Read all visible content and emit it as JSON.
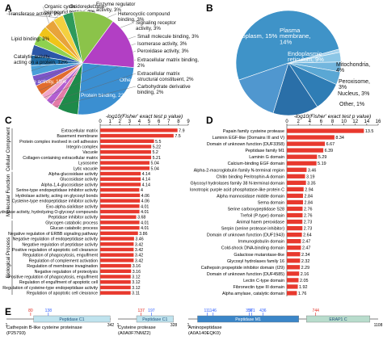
{
  "panels": {
    "A": "A",
    "B": "B",
    "C": "C",
    "D": "D",
    "E": "E"
  },
  "colors": {
    "bar": "#e8392e",
    "domainBox": "#bfe3ee",
    "domainBoxM1": "#3b86c8",
    "erap": "#b8dccc",
    "line": "#555555",
    "siteBlue": "#2a5cff",
    "siteRed": "#e0261c"
  },
  "chart_data": [
    {
      "id": "A",
      "type": "pie",
      "slices": [
        {
          "label": "Protein binding, 23%",
          "value": 23,
          "color": "#3b8fd1"
        },
        {
          "label": "Other, 6%",
          "value": 6,
          "color": "#1e8a4a"
        },
        {
          "label": "Carbohydrate derivative binding, 2%",
          "value": 2,
          "color": "#e47ca8"
        },
        {
          "label": "Extracellular matrix structural constituent, 2%",
          "value": 2,
          "color": "#b35fd2"
        },
        {
          "label": "Extracellular matrix binding, 2%",
          "value": 2,
          "color": "#f2a6c8"
        },
        {
          "label": "Peroxidase activity, 3%",
          "value": 3,
          "color": "#e16c2e"
        },
        {
          "label": "Isomerase activity, 3%",
          "value": 3,
          "color": "#7b56c8"
        },
        {
          "label": "Small molecule binding, 3%",
          "value": 3,
          "color": "#4aa0d8"
        },
        {
          "label": "Signaling receptor activity, 3%",
          "value": 3,
          "color": "#1f6ea8"
        },
        {
          "label": "Heterocyclic compound binding, 3%",
          "value": 3,
          "color": "#2b57a8"
        },
        {
          "label": "Enzyme regulator activity, 3%",
          "value": 3,
          "color": "#8fd14f"
        },
        {
          "label": "Oxidoreductase activity, 3%",
          "value": 3,
          "color": "#f0c419"
        },
        {
          "label": "Organic cyclic compound binding, 3%",
          "value": 3,
          "color": "#e8a33a"
        },
        {
          "label": "Transferase activity, 3%",
          "value": 3,
          "color": "#f4d03f"
        },
        {
          "label": "Lipid binding, 3%",
          "value": 3,
          "color": "#2e9a5b"
        },
        {
          "label": "Catalytic activity, acting on a protein, 12%",
          "value": 12,
          "color": "#8bc34a"
        },
        {
          "label": "Hydrolase activity, 15%",
          "value": 15,
          "color": "#b23fc4"
        }
      ]
    },
    {
      "id": "B",
      "type": "pie",
      "slices": [
        {
          "label": "Extracellular, 51%",
          "value": 51,
          "color": "#3f93c8"
        },
        {
          "label": "Other, 1%",
          "value": 1,
          "color": "#a7d3ee"
        },
        {
          "label": "Nucleus, 3%",
          "value": 3,
          "color": "#8cc6e6"
        },
        {
          "label": "Peroxisome, 3%",
          "value": 3,
          "color": "#73b6de"
        },
        {
          "label": "Mitochondria, 4%",
          "value": 4,
          "color": "#5aa7d4"
        },
        {
          "label": "Endoplasmic reticulum, 9%",
          "value": 9,
          "color": "#2f7db5"
        },
        {
          "label": "Plasma membrane, 14%",
          "value": 14,
          "color": "#2a6fa8"
        },
        {
          "label": "Cytoplasm, 15%",
          "value": 15,
          "color": "#5097cf"
        }
      ]
    },
    {
      "id": "C",
      "type": "bar",
      "orientation": "horizontal",
      "xlabel": "-log10(Fisher' exact test p value)",
      "xlim": [
        0,
        9
      ],
      "xticks": [
        0,
        1,
        2,
        3,
        4,
        5,
        6,
        7,
        8,
        9
      ],
      "groups": [
        {
          "label": "Cellular Component",
          "start": 0,
          "end": 8
        },
        {
          "label": "Molecular Function",
          "start": 8,
          "end": 17
        },
        {
          "label": "Biological Process",
          "start": 17,
          "end": 31
        }
      ],
      "categories": [
        "Extracellular matrix",
        "Basement membrane",
        "Protein complex involved in cell adhesion",
        "Integrin complex",
        "Vacuole",
        "Collagen-containing extracellular matrix",
        "Lysosome",
        "Lytic vacuole",
        "Alpha-glucosidase activity",
        "Glucosidase activity",
        "Alpha-1,4-glucosidase activity",
        "Serine-type endopeptidase inhibitor activity",
        "Hydrolase activity, acting on glycosyl bonds",
        "Cysteine-type endopeptidase inhibitor activity",
        "Exo-alpha-sialidase activity",
        "Hydrolase activity, hydrolyzing O-glycosyl compounds",
        "Peptidase inhibitor activity",
        "Glycogen catabolic process",
        "Glucan catabolic process",
        "Negative regulation of ERBB signaling pathway",
        "Negative regulation of endopeptidase activity",
        "Negative regulation of peptidase activity",
        "Positive regulation of apoptotic cell clearance",
        "Regulation of phagocytosis, engulfment",
        "Regulation of complement activation",
        "Regulation of membrane invagination",
        "Negative regulation of proteolysis",
        "Positive regulation of phagocytosis, engulfment",
        "Regulation of engulfment of apoptotic cell",
        "Regulation of cysteine-type endopeptidase activity",
        "Regulation of apoptotic cell clearance"
      ],
      "values": [
        7.9,
        7.5,
        5.5,
        5.22,
        5.2,
        5.21,
        5.04,
        5.04,
        4.14,
        4.14,
        4.14,
        4.0,
        4.06,
        4.06,
        4.01,
        4.01,
        3.68,
        4.01,
        4.01,
        3.86,
        3.46,
        3.42,
        3.42,
        3.42,
        3.42,
        3.16,
        3.16,
        3.12,
        3.12,
        3.12,
        3.11
      ],
      "value_labels": [
        "7.9",
        "7.5",
        "5.5",
        "5.22",
        "5.2",
        "5.21",
        "5.04",
        "5.04",
        "4.14",
        "4.14",
        "4.14",
        "4",
        "4.06",
        "4.06",
        "4.01",
        "4.01",
        "3.68",
        "4.01",
        "4.01",
        "3.86",
        "3.46",
        "3.42",
        "3.42",
        "3.42",
        "3.42",
        "3.16",
        "3.16",
        "3.12",
        "3.12",
        "3.12",
        "3.11"
      ]
    },
    {
      "id": "D",
      "type": "bar",
      "orientation": "horizontal",
      "xlabel": "-log10(Fisher' exact test p value)",
      "xlim": [
        0,
        16
      ],
      "xticks": [
        0,
        2,
        4,
        6,
        8,
        10,
        12,
        14,
        16
      ],
      "categories": [
        "Papain family cysteine protease",
        "Laminin EGF-like (Domains III and V)",
        "Domain of unknown function (DUF3358)",
        "Peptidase family M1",
        "Laminin G domain",
        "Calcium-binding EGF domain",
        "Alpha-2-macroglobulin family N-terminal region",
        "Chitin binding Peritrophin-A domain",
        "Glycosyl hydrolases family 38 N-terminal domain",
        "Ionotropic purple acid phosphatase-like protein C",
        "Alpha mannosidase middle domain",
        "Sema domain",
        "Serine carboxypeptidase S28",
        "Trefoil (P-type) domain",
        "Animal haem peroxidase",
        "Serpin (serine protease inhibitor)",
        "Domain of unknown function (DUF1943)",
        "Immunoglobulin domain",
        "Cold-shock DNA-binding domain",
        "Galactose mutarotase-like",
        "Glycosyl hydrolases family 16",
        "Cathepsin propeptide inhibitor domain (I29)",
        "Domain of unknown function (DUF4585)",
        "Lectin C-type domain",
        "Fibronectin type III domain",
        "Alpha amylase, catalytic domain"
      ],
      "values": [
        13.5,
        8.34,
        6.67,
        6.39,
        5.29,
        5.19,
        3.46,
        3.19,
        3.35,
        2.94,
        2.84,
        2.84,
        2.76,
        2.76,
        2.73,
        2.73,
        2.64,
        2.47,
        2.47,
        2.34,
        2.32,
        2.29,
        2.16,
        2.05,
        1.92,
        1.76
      ],
      "value_labels": [
        "13.5",
        "8.34",
        "6.67",
        "6.39",
        "5.29",
        "5.19",
        "3.46",
        "3.19",
        "3.35",
        "2.94",
        "2.84",
        "2.84",
        "2.76",
        "2.76",
        "2.73",
        "2.73",
        "2.64",
        "2.47",
        "2.47",
        "2.34",
        "2.32",
        "2.29",
        "2.16",
        "2.05",
        "1.92",
        "1.76"
      ]
    },
    {
      "id": "E",
      "type": "table",
      "proteins": [
        {
          "name": "Cathepsin B-like cysteine proteinase (P25793)",
          "length": 342,
          "domain": "Peptidase C1",
          "domain_span": [
            90,
            340
          ],
          "red_sites": [
            "80"
          ],
          "blue_sites": [
            "138"
          ]
        },
        {
          "name": "Cysteine protease (A0A0F7NMZ2)",
          "length": 328,
          "domain": "Peptidase C1",
          "domain_span": [
            110,
            326
          ],
          "red_sites": [
            "137"
          ],
          "blue_sites": [
            "197"
          ]
        },
        {
          "name": "Aminopeptidase (A0A140EQK0)",
          "length": 1108,
          "domain": "Peptidase M1",
          "domain2": "ERAP1 C",
          "domain_span": [
            55,
            645
          ],
          "domain2_span": [
            690,
            1060
          ],
          "blue_sites": [
            "111",
            "146",
            "356",
            "371",
            "436"
          ],
          "red_sites": [
            "744"
          ]
        }
      ],
      "tick_start": "1"
    }
  ]
}
